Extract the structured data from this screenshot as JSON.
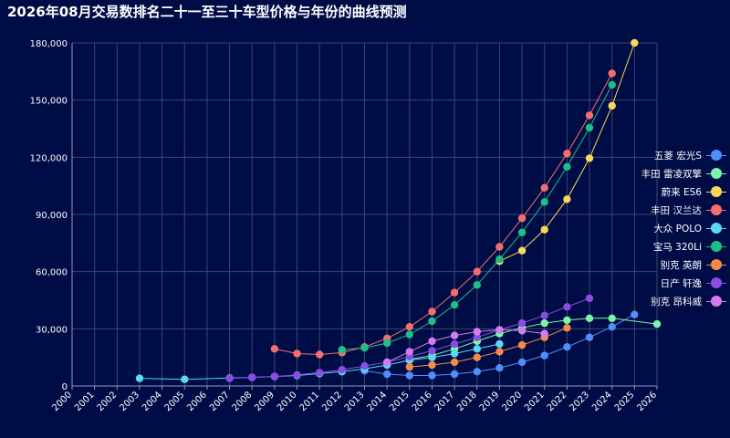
{
  "title": "2026年08月交易数排名二十一至三十车型价格与年份的曲线预测",
  "chart_data": {
    "type": "line",
    "title": "2026年08月交易数排名二十一至三十车型价格与年份的曲线预测",
    "x_categories": [
      "2000",
      "2001",
      "2002",
      "2003",
      "2004",
      "2005",
      "2006",
      "2007",
      "2008",
      "2009",
      "2010",
      "2011",
      "2012",
      "2013",
      "2014",
      "2015",
      "2016",
      "2017",
      "2018",
      "2019",
      "2020",
      "2021",
      "2022",
      "2023",
      "2024",
      "2025",
      "2026"
    ],
    "y_ticks": [
      "0",
      "30,000",
      "60,000",
      "90,000",
      "120,000",
      "150,000",
      "180,000"
    ],
    "ylim": [
      0,
      180000
    ],
    "grid": true,
    "legend_position": "right",
    "series": [
      {
        "name": "五菱 宏光S",
        "color": "#4f8ff7",
        "x": [
          "2013",
          "2014",
          "2015",
          "2016",
          "2017",
          "2018",
          "2019",
          "2020",
          "2021",
          "2022",
          "2023",
          "2024",
          "2025"
        ],
        "y": [
          8000,
          6200,
          5500,
          5500,
          6200,
          7500,
          9500,
          12500,
          16000,
          20500,
          25500,
          31000,
          37500
        ]
      },
      {
        "name": "丰田 雷凌双擎",
        "color": "#7cf5a8",
        "x": [
          "2015",
          "2016",
          "2017",
          "2018",
          "2019",
          "2020",
          "2021",
          "2022",
          "2023",
          "2024",
          "2026"
        ],
        "y": [
          14000,
          16000,
          19500,
          23500,
          27500,
          30500,
          33000,
          34500,
          35500,
          35500,
          32500
        ]
      },
      {
        "name": "蔚来 ES6",
        "color": "#f8d75a",
        "x": [
          "2019",
          "2020",
          "2021",
          "2022",
          "2023",
          "2024",
          "2025"
        ],
        "y": [
          65500,
          71000,
          82000,
          98000,
          119500,
          147000,
          180000
        ]
      },
      {
        "name": "丰田 汉兰达",
        "color": "#f46e6e",
        "x": [
          "2009",
          "2010",
          "2011",
          "2012",
          "2013",
          "2014",
          "2015",
          "2016",
          "2017",
          "2018",
          "2019",
          "2020",
          "2021",
          "2022",
          "2023",
          "2024"
        ],
        "y": [
          19500,
          17000,
          16500,
          17500,
          20500,
          25000,
          31000,
          39000,
          49000,
          60000,
          73000,
          88000,
          104000,
          122000,
          142000,
          164000
        ]
      },
      {
        "name": "大众 POLO",
        "color": "#5ad8f5",
        "x": [
          "2003",
          "2005",
          "2007",
          "2008",
          "2009",
          "2010",
          "2011",
          "2012",
          "2013",
          "2014",
          "2015",
          "2016",
          "2017",
          "2018",
          "2019"
        ],
        "y": [
          4000,
          3500,
          4200,
          4500,
          5000,
          5500,
          6500,
          7500,
          9000,
          11000,
          13500,
          15000,
          17000,
          19500,
          22000
        ]
      },
      {
        "name": "宝马 320Li",
        "color": "#1bc085",
        "x": [
          "2012",
          "2013",
          "2014",
          "2015",
          "2016",
          "2017",
          "2018",
          "2019",
          "2020",
          "2021",
          "2022",
          "2023",
          "2024"
        ],
        "y": [
          19000,
          20000,
          22500,
          27000,
          34000,
          42500,
          53000,
          66500,
          80500,
          96500,
          115000,
          135500,
          158000
        ]
      },
      {
        "name": "别克 英朗",
        "color": "#f7894a",
        "x": [
          "2015",
          "2016",
          "2017",
          "2018",
          "2019",
          "2020",
          "2021",
          "2022"
        ],
        "y": [
          10000,
          11000,
          12500,
          15000,
          18000,
          21500,
          25500,
          30500
        ]
      },
      {
        "name": "日产 轩逸",
        "color": "#8a4de0",
        "x": [
          "2007",
          "2008",
          "2009",
          "2010",
          "2011",
          "2012",
          "2013",
          "2014",
          "2015",
          "2016",
          "2017",
          "2018",
          "2019",
          "2020",
          "2021",
          "2022",
          "2023"
        ],
        "y": [
          4000,
          4500,
          5000,
          5800,
          7000,
          8500,
          10500,
          12500,
          15500,
          18500,
          22000,
          25500,
          29500,
          33000,
          37000,
          41500,
          46000
        ]
      },
      {
        "name": "别克 昂科威",
        "color": "#d37cf2",
        "x": [
          "2014",
          "2015",
          "2016",
          "2017",
          "2018",
          "2019",
          "2020",
          "2021"
        ],
        "y": [
          12500,
          18000,
          23500,
          26500,
          28500,
          29500,
          29000,
          27500
        ]
      }
    ]
  }
}
